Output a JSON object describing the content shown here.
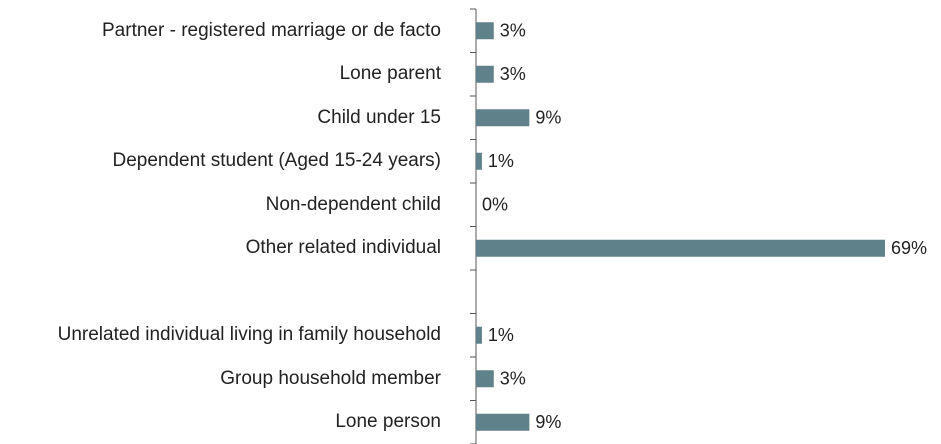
{
  "chart_data": {
    "type": "bar",
    "orientation": "horizontal",
    "categories": [
      "Partner - registered marriage or de facto",
      "Lone parent",
      "Child under 15",
      "Dependent student (Aged 15-24 years)",
      "Non-dependent child",
      "Other related individual",
      null,
      "Unrelated individual living in family household",
      "Group household member",
      "Lone person"
    ],
    "values": [
      3,
      3,
      9,
      1,
      0,
      69,
      null,
      1,
      3,
      9
    ],
    "value_labels": [
      "3%",
      "3%",
      "9%",
      "1%",
      "0%",
      "69%",
      null,
      "1%",
      "3%",
      "9%"
    ],
    "color": "#5f8189"
  }
}
